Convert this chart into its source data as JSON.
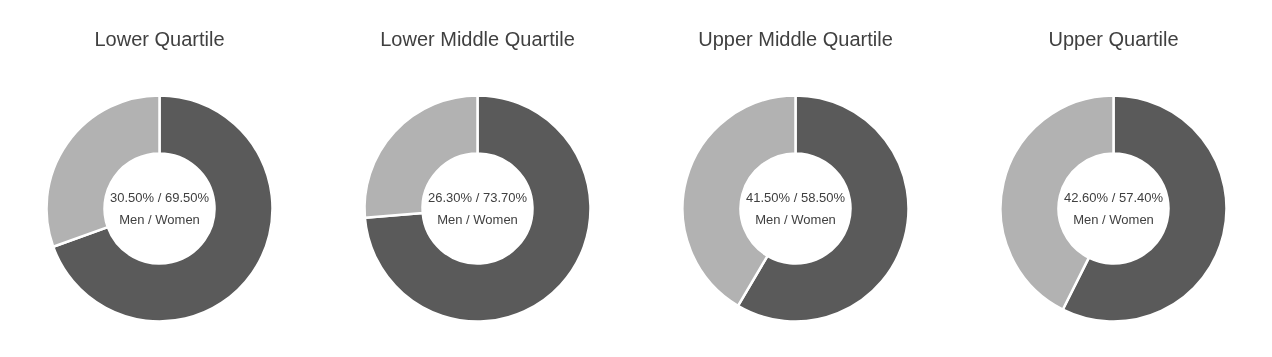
{
  "chart_data": [
    {
      "type": "donut",
      "title": "Lower Quartile",
      "categories": [
        null,
        null
      ],
      "values": [
        69.5,
        30.5
      ],
      "colors": [
        "#5a5a5a",
        "#b2b2b2"
      ],
      "annotations": [
        "30.50% / 69.50%",
        "Men / Women"
      ]
    },
    {
      "type": "donut",
      "title": "Lower Middle Quartile",
      "categories": [
        null,
        null
      ],
      "values": [
        73.7,
        26.3
      ],
      "colors": [
        "#5a5a5a",
        "#b2b2b2"
      ],
      "annotations": [
        "26.30% / 73.70%",
        "Men / Women"
      ]
    },
    {
      "type": "donut",
      "title": "Upper Middle Quartile",
      "categories": [
        null,
        null
      ],
      "values": [
        58.5,
        41.5
      ],
      "colors": [
        "#5a5a5a",
        "#b2b2b2"
      ],
      "annotations": [
        "41.50% / 58.50%",
        "Men / Women"
      ]
    },
    {
      "type": "donut",
      "title": "Upper Quartile",
      "categories": [
        null,
        null
      ],
      "values": [
        57.4,
        42.6
      ],
      "colors": [
        "#5a5a5a",
        "#b2b2b2"
      ],
      "annotations": [
        "42.60% / 57.40%",
        "Men / Women"
      ]
    }
  ]
}
